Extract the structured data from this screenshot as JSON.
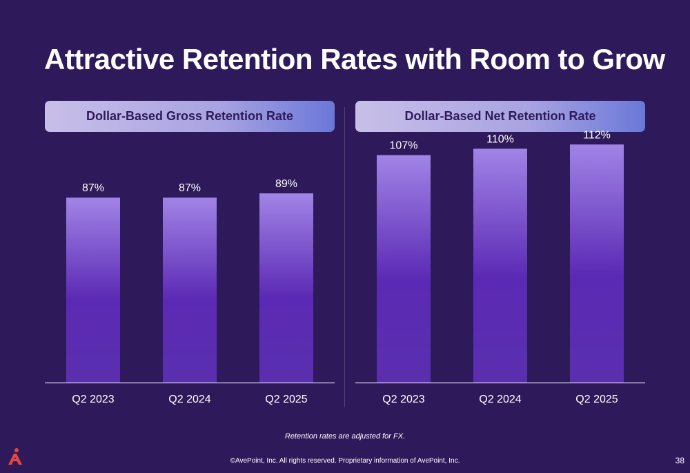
{
  "slide": {
    "title": "Attractive Retention Rates with Room to Grow",
    "footnote": "Retention rates are adjusted for FX.",
    "copyright": "©AvePoint, Inc. All rights reserved. Proprietary information of AvePoint, Inc.",
    "page_number": "38",
    "logo_icon": "avepoint-logo-icon",
    "colors": {
      "background": "#2e1a5a",
      "bar_top": "#a184e6",
      "bar_bottom": "#5b2ab4",
      "header_text": "#2e1a5a"
    }
  },
  "chart_data": [
    {
      "type": "bar",
      "title": "Dollar-Based Gross Retention Rate",
      "categories": [
        "Q2 2023",
        "Q2 2024",
        "Q2 2025"
      ],
      "values": [
        87,
        87,
        89
      ],
      "value_labels": [
        "87%",
        "87%",
        "89%"
      ],
      "unit": "%",
      "grid": false
    },
    {
      "type": "bar",
      "title": "Dollar-Based Net Retention Rate",
      "categories": [
        "Q2 2023",
        "Q2 2024",
        "Q2 2025"
      ],
      "values": [
        107,
        110,
        112
      ],
      "value_labels": [
        "107%",
        "110%",
        "112%"
      ],
      "unit": "%",
      "grid": false
    }
  ]
}
